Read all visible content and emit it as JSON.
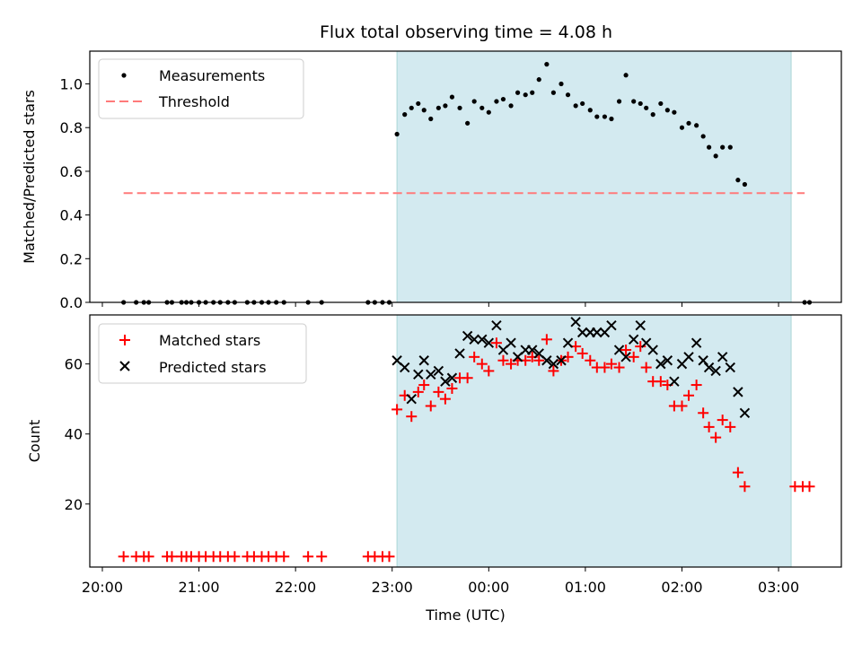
{
  "chart_data": {
    "title": "Flux total observing time = 4.08 h",
    "xlabel": "Time (UTC)",
    "x_ticks": [
      "20:00",
      "21:00",
      "22:00",
      "23:00",
      "00:00",
      "01:00",
      "02:00",
      "03:00"
    ],
    "x_range_hours": [
      19.87,
      27.65
    ],
    "x_tick_hours": [
      20,
      21,
      22,
      23,
      24,
      25,
      26,
      27
    ],
    "shaded_span_hours": [
      23.05,
      27.13
    ],
    "shade_color": "#d3eaf0",
    "panels": [
      {
        "type": "scatter",
        "ylabel": "Matched/Predicted stars",
        "ylim": [
          0,
          1.15
        ],
        "y_ticks": [
          0.0,
          0.2,
          0.4,
          0.6,
          0.8,
          1.0
        ],
        "y_tick_labels": [
          "0.0",
          "0.2",
          "0.4",
          "0.6",
          "0.8",
          "1.0"
        ],
        "legend_position": "upper-left",
        "series": [
          {
            "name": "Measurements",
            "marker": "dot",
            "color": "#000000",
            "points": [
              [
                20.22,
                0
              ],
              [
                20.35,
                0
              ],
              [
                20.43,
                0
              ],
              [
                20.48,
                0
              ],
              [
                20.67,
                0
              ],
              [
                20.72,
                0
              ],
              [
                20.82,
                0
              ],
              [
                20.87,
                0
              ],
              [
                20.92,
                0
              ],
              [
                21.0,
                0
              ],
              [
                21.07,
                0
              ],
              [
                21.15,
                0
              ],
              [
                21.22,
                0
              ],
              [
                21.3,
                0
              ],
              [
                21.37,
                0
              ],
              [
                21.5,
                0
              ],
              [
                21.57,
                0
              ],
              [
                21.65,
                0
              ],
              [
                21.72,
                0
              ],
              [
                21.8,
                0
              ],
              [
                21.88,
                0
              ],
              [
                22.13,
                0
              ],
              [
                22.27,
                0
              ],
              [
                22.75,
                0
              ],
              [
                22.82,
                0
              ],
              [
                22.9,
                0
              ],
              [
                22.97,
                0
              ],
              [
                23.05,
                0.77
              ],
              [
                23.13,
                0.86
              ],
              [
                23.2,
                0.89
              ],
              [
                23.27,
                0.91
              ],
              [
                23.33,
                0.88
              ],
              [
                23.4,
                0.84
              ],
              [
                23.48,
                0.89
              ],
              [
                23.55,
                0.9
              ],
              [
                23.62,
                0.94
              ],
              [
                23.7,
                0.89
              ],
              [
                23.78,
                0.82
              ],
              [
                23.85,
                0.92
              ],
              [
                23.93,
                0.89
              ],
              [
                24.0,
                0.87
              ],
              [
                24.08,
                0.92
              ],
              [
                24.15,
                0.93
              ],
              [
                24.23,
                0.9
              ],
              [
                24.3,
                0.96
              ],
              [
                24.38,
                0.95
              ],
              [
                24.45,
                0.96
              ],
              [
                24.52,
                1.02
              ],
              [
                24.6,
                1.09
              ],
              [
                24.67,
                0.96
              ],
              [
                24.75,
                1.0
              ],
              [
                24.82,
                0.95
              ],
              [
                24.9,
                0.9
              ],
              [
                24.97,
                0.91
              ],
              [
                25.05,
                0.88
              ],
              [
                25.12,
                0.85
              ],
              [
                25.2,
                0.85
              ],
              [
                25.27,
                0.84
              ],
              [
                25.35,
                0.92
              ],
              [
                25.42,
                1.04
              ],
              [
                25.5,
                0.92
              ],
              [
                25.57,
                0.91
              ],
              [
                25.63,
                0.89
              ],
              [
                25.7,
                0.86
              ],
              [
                25.78,
                0.91
              ],
              [
                25.85,
                0.88
              ],
              [
                25.92,
                0.87
              ],
              [
                26.0,
                0.8
              ],
              [
                26.07,
                0.82
              ],
              [
                26.15,
                0.81
              ],
              [
                26.22,
                0.76
              ],
              [
                26.28,
                0.71
              ],
              [
                26.35,
                0.67
              ],
              [
                26.42,
                0.71
              ],
              [
                26.5,
                0.71
              ],
              [
                26.58,
                0.56
              ],
              [
                26.65,
                0.54
              ],
              [
                27.27,
                0
              ],
              [
                27.32,
                0
              ]
            ]
          },
          {
            "name": "Threshold",
            "type": "line",
            "style": "dashed",
            "color": "#ff7a7a",
            "points": [
              [
                20.22,
                0.5
              ],
              [
                27.27,
                0.5
              ]
            ]
          }
        ]
      },
      {
        "type": "scatter",
        "ylabel": "Count",
        "ylim": [
          2,
          74
        ],
        "y_ticks": [
          20,
          40,
          60
        ],
        "y_tick_labels": [
          "20",
          "40",
          "60"
        ],
        "legend_position": "upper-left",
        "series": [
          {
            "name": "Matched stars",
            "marker": "plus",
            "color": "#ff0000",
            "points": [
              [
                20.22,
                5
              ],
              [
                20.35,
                5
              ],
              [
                20.43,
                5
              ],
              [
                20.48,
                5
              ],
              [
                20.67,
                5
              ],
              [
                20.72,
                5
              ],
              [
                20.82,
                5
              ],
              [
                20.87,
                5
              ],
              [
                20.92,
                5
              ],
              [
                21.0,
                5
              ],
              [
                21.07,
                5
              ],
              [
                21.15,
                5
              ],
              [
                21.22,
                5
              ],
              [
                21.3,
                5
              ],
              [
                21.37,
                5
              ],
              [
                21.5,
                5
              ],
              [
                21.57,
                5
              ],
              [
                21.65,
                5
              ],
              [
                21.72,
                5
              ],
              [
                21.8,
                5
              ],
              [
                21.88,
                5
              ],
              [
                22.13,
                5
              ],
              [
                22.27,
                5
              ],
              [
                22.75,
                5
              ],
              [
                22.82,
                5
              ],
              [
                22.9,
                5
              ],
              [
                22.97,
                5
              ],
              [
                23.05,
                47
              ],
              [
                23.13,
                51
              ],
              [
                23.2,
                45
              ],
              [
                23.27,
                52
              ],
              [
                23.33,
                54
              ],
              [
                23.4,
                48
              ],
              [
                23.48,
                52
              ],
              [
                23.55,
                50
              ],
              [
                23.62,
                53
              ],
              [
                23.7,
                56
              ],
              [
                23.78,
                56
              ],
              [
                23.85,
                62
              ],
              [
                23.93,
                60
              ],
              [
                24.0,
                58
              ],
              [
                24.08,
                66
              ],
              [
                24.15,
                61
              ],
              [
                24.23,
                60
              ],
              [
                24.3,
                61
              ],
              [
                24.38,
                61
              ],
              [
                24.45,
                62
              ],
              [
                24.52,
                61
              ],
              [
                24.6,
                67
              ],
              [
                24.67,
                58
              ],
              [
                24.75,
                61
              ],
              [
                24.82,
                62
              ],
              [
                24.9,
                65
              ],
              [
                24.97,
                63
              ],
              [
                25.05,
                61
              ],
              [
                25.12,
                59
              ],
              [
                25.2,
                59
              ],
              [
                25.27,
                60
              ],
              [
                25.35,
                59
              ],
              [
                25.42,
                64
              ],
              [
                25.5,
                62
              ],
              [
                25.57,
                65
              ],
              [
                25.63,
                59
              ],
              [
                25.7,
                55
              ],
              [
                25.78,
                55
              ],
              [
                25.85,
                54
              ],
              [
                25.92,
                48
              ],
              [
                26.0,
                48
              ],
              [
                26.07,
                51
              ],
              [
                26.15,
                54
              ],
              [
                26.22,
                46
              ],
              [
                26.28,
                42
              ],
              [
                26.35,
                39
              ],
              [
                26.42,
                44
              ],
              [
                26.5,
                42
              ],
              [
                26.58,
                29
              ],
              [
                26.65,
                25
              ],
              [
                27.17,
                25
              ],
              [
                27.25,
                25
              ],
              [
                27.32,
                25
              ]
            ]
          },
          {
            "name": "Predicted stars",
            "marker": "x",
            "color": "#000000",
            "points": [
              [
                23.05,
                61
              ],
              [
                23.13,
                59
              ],
              [
                23.2,
                50
              ],
              [
                23.27,
                57
              ],
              [
                23.33,
                61
              ],
              [
                23.4,
                57
              ],
              [
                23.48,
                58
              ],
              [
                23.55,
                55
              ],
              [
                23.62,
                56
              ],
              [
                23.7,
                63
              ],
              [
                23.78,
                68
              ],
              [
                23.85,
                67
              ],
              [
                23.93,
                67
              ],
              [
                24.0,
                66
              ],
              [
                24.08,
                71
              ],
              [
                24.15,
                64
              ],
              [
                24.23,
                66
              ],
              [
                24.3,
                62
              ],
              [
                24.38,
                64
              ],
              [
                24.45,
                64
              ],
              [
                24.52,
                63
              ],
              [
                24.6,
                61
              ],
              [
                24.67,
                60
              ],
              [
                24.75,
                61
              ],
              [
                24.82,
                66
              ],
              [
                24.9,
                72
              ],
              [
                24.97,
                69
              ],
              [
                25.05,
                69
              ],
              [
                25.12,
                69
              ],
              [
                25.2,
                69
              ],
              [
                25.27,
                71
              ],
              [
                25.35,
                64
              ],
              [
                25.42,
                62
              ],
              [
                25.5,
                67
              ],
              [
                25.57,
                71
              ],
              [
                25.63,
                66
              ],
              [
                25.7,
                64
              ],
              [
                25.78,
                60
              ],
              [
                25.85,
                61
              ],
              [
                25.92,
                55
              ],
              [
                26.0,
                60
              ],
              [
                26.07,
                62
              ],
              [
                26.15,
                66
              ],
              [
                26.22,
                61
              ],
              [
                26.28,
                59
              ],
              [
                26.35,
                58
              ],
              [
                26.42,
                62
              ],
              [
                26.5,
                59
              ],
              [
                26.58,
                52
              ],
              [
                26.65,
                46
              ]
            ]
          }
        ]
      }
    ]
  }
}
